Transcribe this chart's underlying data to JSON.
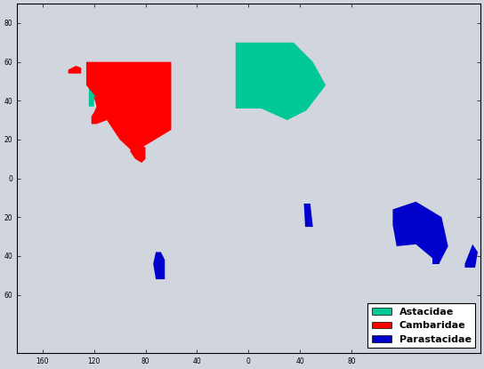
{
  "background_color": "#d0d5de",
  "ocean_color": "#d0d5de",
  "land_color": "#ffffff",
  "astacidae_color": "#00c896",
  "cambaridae_color": "#ff0000",
  "parastacidae_color": "#0000cc",
  "coastline_color": "#000000",
  "coastline_lw": 0.5,
  "legend_entries": [
    "Astacidae",
    "Cambaridae",
    "Parastacidae"
  ],
  "legend_colors": [
    "#00c896",
    "#ff0000",
    "#0000cc"
  ],
  "xtick_lons": [
    -160,
    -120,
    -80,
    -40,
    0,
    40,
    80
  ],
  "ytick_lats": [
    -60,
    -40,
    -20,
    0,
    20,
    40,
    60,
    80
  ],
  "xlim": [
    -180,
    180
  ],
  "ylim": [
    -90,
    90
  ],
  "astacidae_regions": [
    [
      [
        -124,
        37
      ],
      [
        -124,
        49
      ],
      [
        -116,
        49
      ],
      [
        -116,
        44
      ],
      [
        -120,
        40
      ],
      [
        -120,
        37
      ]
    ],
    [
      [
        -10,
        36
      ],
      [
        -10,
        70
      ],
      [
        35,
        70
      ],
      [
        50,
        60
      ],
      [
        60,
        48
      ],
      [
        45,
        35
      ],
      [
        30,
        30
      ],
      [
        10,
        36
      ]
    ]
  ],
  "cambaridae_regions": [
    [
      [
        -126,
        48
      ],
      [
        -126,
        60
      ],
      [
        -60,
        60
      ],
      [
        -60,
        25
      ],
      [
        -85,
        15
      ],
      [
        -92,
        15
      ],
      [
        -100,
        20
      ],
      [
        -110,
        30
      ],
      [
        -116,
        40
      ],
      [
        -126,
        48
      ]
    ],
    [
      [
        -122,
        32
      ],
      [
        -120,
        34
      ],
      [
        -118,
        37
      ],
      [
        -120,
        42
      ],
      [
        -115,
        42
      ],
      [
        -110,
        35
      ],
      [
        -110,
        30
      ],
      [
        -118,
        28
      ],
      [
        -122,
        28
      ]
    ],
    [
      [
        -92,
        14
      ],
      [
        -88,
        10
      ],
      [
        -83,
        8
      ],
      [
        -80,
        10
      ],
      [
        -80,
        16
      ],
      [
        -90,
        18
      ]
    ],
    [
      [
        -140,
        56
      ],
      [
        -134,
        58
      ],
      [
        -130,
        57
      ],
      [
        -130,
        54
      ],
      [
        -140,
        54
      ]
    ]
  ],
  "parastacidae_regions": [
    [
      [
        112,
        -16
      ],
      [
        130,
        -12
      ],
      [
        150,
        -20
      ],
      [
        155,
        -35
      ],
      [
        148,
        -44
      ],
      [
        130,
        -34
      ],
      [
        115,
        -35
      ],
      [
        112,
        -24
      ]
    ],
    [
      [
        143,
        -40
      ],
      [
        148,
        -40
      ],
      [
        148,
        -44
      ],
      [
        143,
        -44
      ]
    ],
    [
      [
        168,
        -44
      ],
      [
        174,
        -34
      ],
      [
        178,
        -38
      ],
      [
        176,
        -46
      ],
      [
        168,
        -46
      ]
    ],
    [
      [
        -72,
        -38
      ],
      [
        -68,
        -38
      ],
      [
        -65,
        -42
      ],
      [
        -65,
        -52
      ],
      [
        -72,
        -52
      ],
      [
        -74,
        -44
      ]
    ],
    [
      [
        43,
        -13
      ],
      [
        48,
        -13
      ],
      [
        50,
        -25
      ],
      [
        44,
        -25
      ]
    ]
  ]
}
